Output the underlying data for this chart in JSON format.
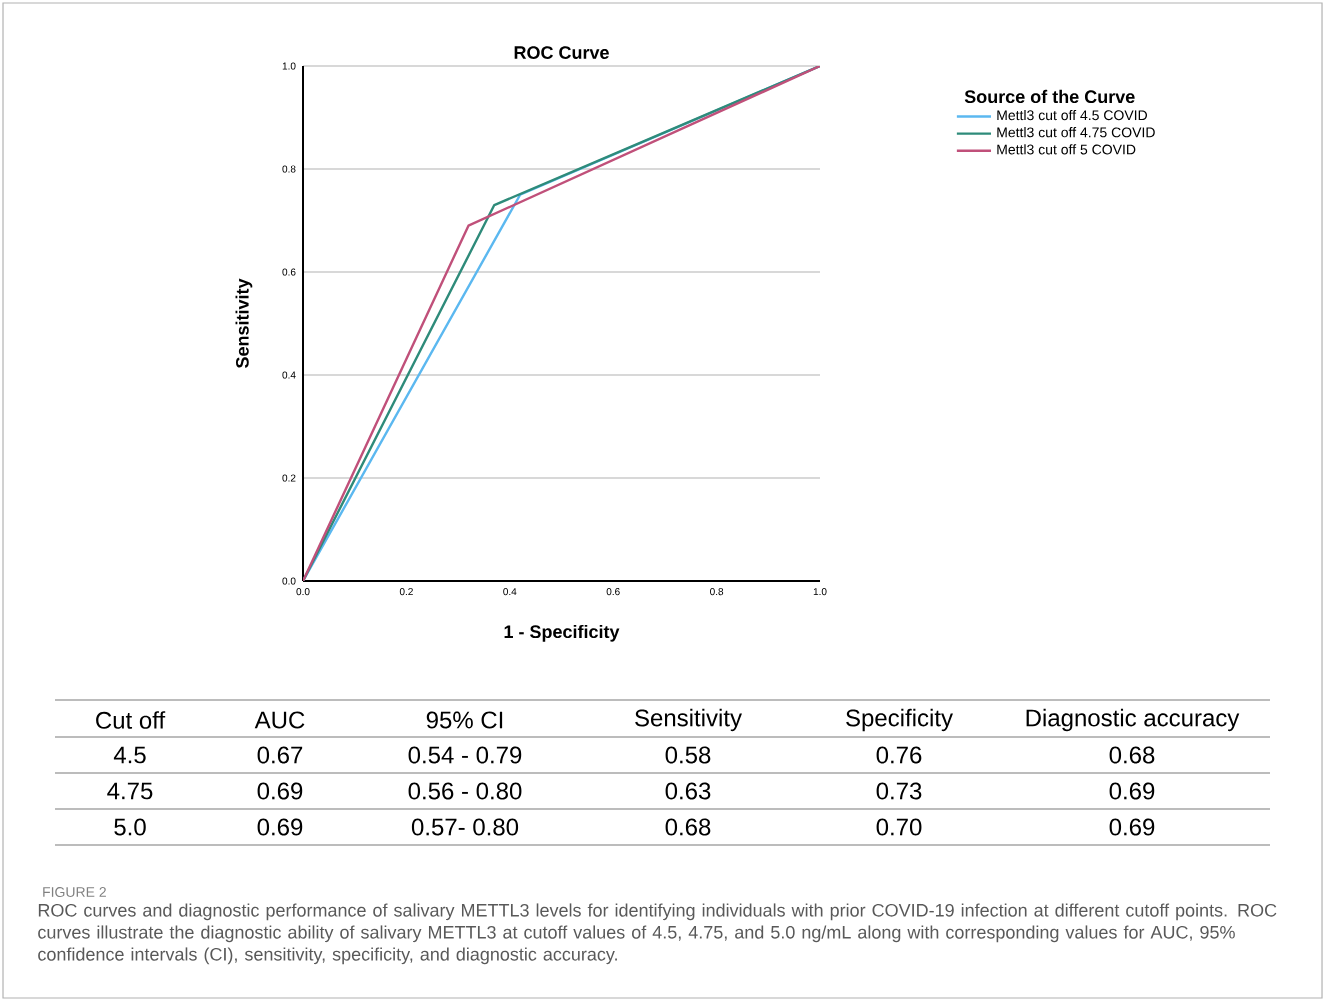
{
  "chart_data": [
    {
      "type": "line",
      "title": "ROC Curve",
      "xlabel": "1 - Specificity",
      "ylabel": "Sensitivity",
      "legend_title": "Source of the Curve",
      "series": [
        {
          "name": "Mettl3 cut off 4.5 COVID",
          "color": "#5bb8f0",
          "x": [
            0,
            0.42,
            1
          ],
          "values": [
            0,
            0.75,
            1
          ]
        },
        {
          "name": "Mettl3 cut off 4.75 COVID",
          "color": "#2e8b7a",
          "x": [
            0,
            0.37,
            1
          ],
          "values": [
            0,
            0.73,
            1
          ]
        },
        {
          "name": "Mettl3 cut off 5 COVID",
          "color": "#c0507a",
          "x": [
            0,
            0.32,
            1
          ],
          "values": [
            0,
            0.69,
            1
          ]
        }
      ],
      "xlim": [
        0,
        1
      ],
      "ylim": [
        0,
        1
      ],
      "xticks": [
        {
          "value": 0,
          "label": "0.0"
        },
        0.2,
        0.4,
        0.6,
        0.8,
        {
          "value": 1,
          "label": "1.0"
        }
      ],
      "yticks": [
        {
          "value": 0,
          "label": "0.0"
        },
        0.2,
        0.4,
        0.6,
        0.8,
        {
          "value": 1,
          "label": "1.0"
        }
      ],
      "grid": "y",
      "legend": "top right",
      "line_style": "solid",
      "annotations": [
        "FIGURE 2",
        "ROC curves and diagnostic performance of salivary METTL3 levels for identifying individuals with prior COVID-19 infection at different cutoff points. ROC curves illustrate the diagnostic ability of salivary METTL3 at cutoff values of 4.5, 4.75, and 5.0 ng/mL along with corresponding values for AUC, 95% confidence intervals (CI), sensitivity, specificity, and diagnostic accuracy."
      ]
    },
    {
      "type": "other",
      "categories": [
        "Cut off",
        "AUC",
        "95% CI",
        "Sensitivity",
        "Specificity",
        "Diagnostic accuracy"
      ],
      "annotations": [
        "4.5",
        "0.67",
        "0.54 - 0.79",
        "0.58",
        "0.76",
        "0.68",
        "4.75",
        "0.69",
        "0.56 - 0.80",
        "0.63",
        "0.73",
        "0.69",
        "5.0",
        "0.69",
        "0.57- 0.80",
        "0.68",
        "0.70",
        "0.69"
      ]
    }
  ]
}
